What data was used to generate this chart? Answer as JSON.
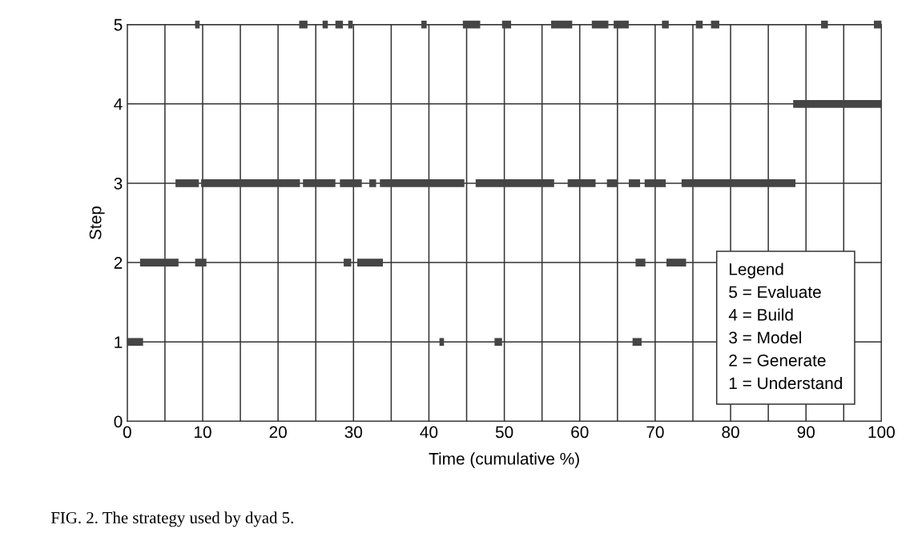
{
  "chart_data": {
    "type": "line",
    "xlabel": "Time (cumulative %)",
    "ylabel": "Step",
    "xlim": [
      0,
      100
    ],
    "ylim": [
      0,
      5
    ],
    "xticks": [
      0,
      {
        "value": 5,
        "label": null
      },
      10,
      {
        "value": 15,
        "label": null
      },
      20,
      {
        "value": 25,
        "label": null
      },
      30,
      {
        "value": 35,
        "label": null
      },
      40,
      {
        "value": 45,
        "label": null
      },
      50,
      {
        "value": 55,
        "label": null
      },
      60,
      {
        "value": 65,
        "label": null
      },
      70,
      {
        "value": 75,
        "label": null
      },
      80,
      {
        "value": 85,
        "label": null
      },
      90,
      {
        "value": 95,
        "label": null
      },
      100
    ],
    "yticks": [
      0,
      1,
      2,
      3,
      4,
      5
    ],
    "grid": true,
    "marker": "none",
    "line_style": "solid",
    "series": [
      {
        "color": "#454545",
        "x": [
          9.0,
          9.6
        ],
        "values": [
          5,
          5
        ]
      },
      {
        "color": "#454545",
        "x": [
          22.8,
          23.9
        ],
        "values": [
          5,
          5
        ]
      },
      {
        "color": "#454545",
        "x": [
          25.9,
          26.6
        ],
        "values": [
          5,
          5
        ]
      },
      {
        "color": "#454545",
        "x": [
          27.6,
          28.6
        ],
        "values": [
          5,
          5
        ]
      },
      {
        "color": "#454545",
        "x": [
          29.3,
          29.9
        ],
        "values": [
          5,
          5
        ]
      },
      {
        "color": "#454545",
        "x": [
          39.0,
          39.7
        ],
        "values": [
          5,
          5
        ]
      },
      {
        "color": "#454545",
        "x": [
          44.5,
          46.8
        ],
        "values": [
          5,
          5
        ]
      },
      {
        "color": "#454545",
        "x": [
          49.7,
          50.9
        ],
        "values": [
          5,
          5
        ]
      },
      {
        "color": "#454545",
        "x": [
          56.2,
          59.0
        ],
        "values": [
          5,
          5
        ]
      },
      {
        "color": "#454545",
        "x": [
          61.6,
          63.8
        ],
        "values": [
          5,
          5
        ]
      },
      {
        "color": "#454545",
        "x": [
          64.5,
          66.5
        ],
        "values": [
          5,
          5
        ]
      },
      {
        "color": "#454545",
        "x": [
          70.9,
          71.8
        ],
        "values": [
          5,
          5
        ]
      },
      {
        "color": "#454545",
        "x": [
          75.4,
          76.3
        ],
        "values": [
          5,
          5
        ]
      },
      {
        "color": "#454545",
        "x": [
          77.4,
          78.5
        ],
        "values": [
          5,
          5
        ]
      },
      {
        "color": "#454545",
        "x": [
          92.0,
          92.9
        ],
        "values": [
          5,
          5
        ]
      },
      {
        "color": "#454545",
        "x": [
          99.0,
          100
        ],
        "values": [
          5,
          5
        ]
      },
      {
        "color": "#454545",
        "x": [
          88.3,
          100
        ],
        "values": [
          4,
          4
        ]
      },
      {
        "color": "#454545",
        "x": [
          6.4,
          9.5
        ],
        "values": [
          3,
          3
        ]
      },
      {
        "color": "#454545",
        "x": [
          9.8,
          22.9
        ],
        "values": [
          3,
          3
        ]
      },
      {
        "color": "#454545",
        "x": [
          23.3,
          27.6
        ],
        "values": [
          3,
          3
        ]
      },
      {
        "color": "#454545",
        "x": [
          28.2,
          31.1
        ],
        "values": [
          3,
          3
        ]
      },
      {
        "color": "#454545",
        "x": [
          32.1,
          33.0
        ],
        "values": [
          3,
          3
        ]
      },
      {
        "color": "#454545",
        "x": [
          33.5,
          44.7
        ],
        "values": [
          3,
          3
        ]
      },
      {
        "color": "#454545",
        "x": [
          46.2,
          56.6
        ],
        "values": [
          3,
          3
        ]
      },
      {
        "color": "#454545",
        "x": [
          58.4,
          62.1
        ],
        "values": [
          3,
          3
        ]
      },
      {
        "color": "#454545",
        "x": [
          63.6,
          65.0
        ],
        "values": [
          3,
          3
        ]
      },
      {
        "color": "#454545",
        "x": [
          66.5,
          68.0
        ],
        "values": [
          3,
          3
        ]
      },
      {
        "color": "#454545",
        "x": [
          68.6,
          71.4
        ],
        "values": [
          3,
          3
        ]
      },
      {
        "color": "#454545",
        "x": [
          73.5,
          88.6
        ],
        "values": [
          3,
          3
        ]
      },
      {
        "color": "#454545",
        "x": [
          1.7,
          6.8
        ],
        "values": [
          2,
          2
        ]
      },
      {
        "color": "#454545",
        "x": [
          9.0,
          10.5
        ],
        "values": [
          2,
          2
        ]
      },
      {
        "color": "#454545",
        "x": [
          28.7,
          29.7
        ],
        "values": [
          2,
          2
        ]
      },
      {
        "color": "#454545",
        "x": [
          30.5,
          33.9
        ],
        "values": [
          2,
          2
        ]
      },
      {
        "color": "#454545",
        "x": [
          67.4,
          68.7
        ],
        "values": [
          2,
          2
        ]
      },
      {
        "color": "#454545",
        "x": [
          71.5,
          74.1
        ],
        "values": [
          2,
          2
        ]
      },
      {
        "color": "#454545",
        "x": [
          0,
          2.1
        ],
        "values": [
          1,
          1
        ]
      },
      {
        "color": "#454545",
        "x": [
          41.4,
          42.0
        ],
        "values": [
          1,
          1
        ]
      },
      {
        "color": "#454545",
        "x": [
          48.7,
          49.7
        ],
        "values": [
          1,
          1
        ]
      },
      {
        "color": "#454545",
        "x": [
          67.0,
          68.2
        ],
        "values": [
          1,
          1
        ]
      }
    ],
    "annotations": [
      "FIG. 2. The strategy used by dyad 5.",
      "Legend",
      "5 = Evaluate",
      "4 = Build",
      "3 = Model",
      "2 = Generate",
      "1 = Understand"
    ]
  }
}
